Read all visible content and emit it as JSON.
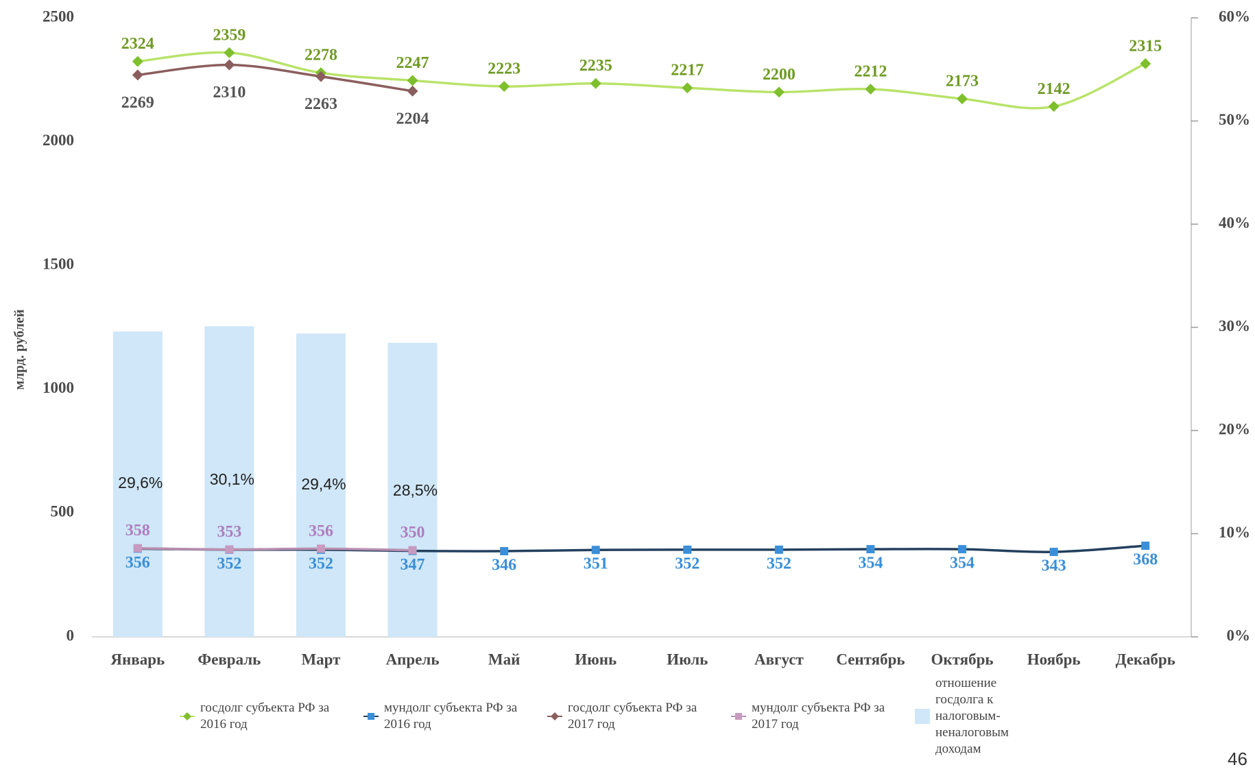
{
  "chart_data": {
    "type": "line",
    "y_label": "млрд. рублей",
    "categories": [
      "Январь",
      "Февраль",
      "Март",
      "Апрель",
      "Май",
      "Июнь",
      "Июль",
      "Август",
      "Сентябрь",
      "Октябрь",
      "Ноябрь",
      "Декабрь"
    ],
    "series": [
      {
        "name": "госдолг субъекта РФ за 2016 год",
        "type": "line",
        "marker": "diamond",
        "color": "#b9e36a",
        "marker_color": "#7fbf2e",
        "label_color": "#6f9a24",
        "label_side": "above",
        "values": [
          2324,
          2359,
          2278,
          2247,
          2223,
          2235,
          2217,
          2200,
          2212,
          2173,
          2142,
          2315
        ]
      },
      {
        "name": "мундолг субъекта РФ за 2016 год",
        "type": "line",
        "marker": "square",
        "color": "#23405e",
        "marker_color": "#3a8fd8",
        "label_color": "#3a8fd8",
        "label_side": "below",
        "values": [
          356,
          352,
          352,
          347,
          346,
          351,
          352,
          352,
          354,
          354,
          343,
          368
        ]
      },
      {
        "name": "госдолг субъекта РФ за 2017 год",
        "type": "line",
        "marker": "diamond",
        "color": "#8b5e5e",
        "marker_color": "#8b5e5e",
        "label_color": "#555555",
        "label_side": "below",
        "values": [
          2269,
          2310,
          2263,
          2204,
          null,
          null,
          null,
          null,
          null,
          null,
          null,
          null
        ]
      },
      {
        "name": "мундолг субъекта РФ за 2017 год",
        "type": "line",
        "marker": "square",
        "color": "#b98fb0",
        "marker_color": "#c79ac0",
        "label_color": "#b07cc0",
        "label_side": "above",
        "values": [
          358,
          353,
          356,
          350,
          null,
          null,
          null,
          null,
          null,
          null,
          null,
          null
        ]
      },
      {
        "name": "отношение госдолга к налоговым-неналоговым доходам",
        "type": "bar",
        "axis": "y2",
        "color": "#cfe7f8",
        "label_color": "#222222",
        "values": [
          29.6,
          30.1,
          29.4,
          28.5,
          null,
          null,
          null,
          null,
          null,
          null,
          null,
          null
        ],
        "value_labels": [
          "29,6%",
          "30,1%",
          "29,4%",
          "28,5%",
          null,
          null,
          null,
          null,
          null,
          null,
          null,
          null
        ]
      }
    ],
    "ylim": [
      0,
      2500
    ],
    "yticks": [
      0,
      500,
      1000,
      1500,
      2000,
      2500
    ],
    "y2lim": [
      0,
      60
    ],
    "y2ticks": [
      {
        "value": 0,
        "label": "0%"
      },
      {
        "value": 10,
        "label": "10%"
      },
      {
        "value": 20,
        "label": "20%"
      },
      {
        "value": 30,
        "label": "30%"
      },
      {
        "value": 40,
        "label": "40%"
      },
      {
        "value": 50,
        "label": "50%"
      },
      {
        "value": 60,
        "label": "60%"
      }
    ],
    "grid": false
  },
  "page_number": "46"
}
